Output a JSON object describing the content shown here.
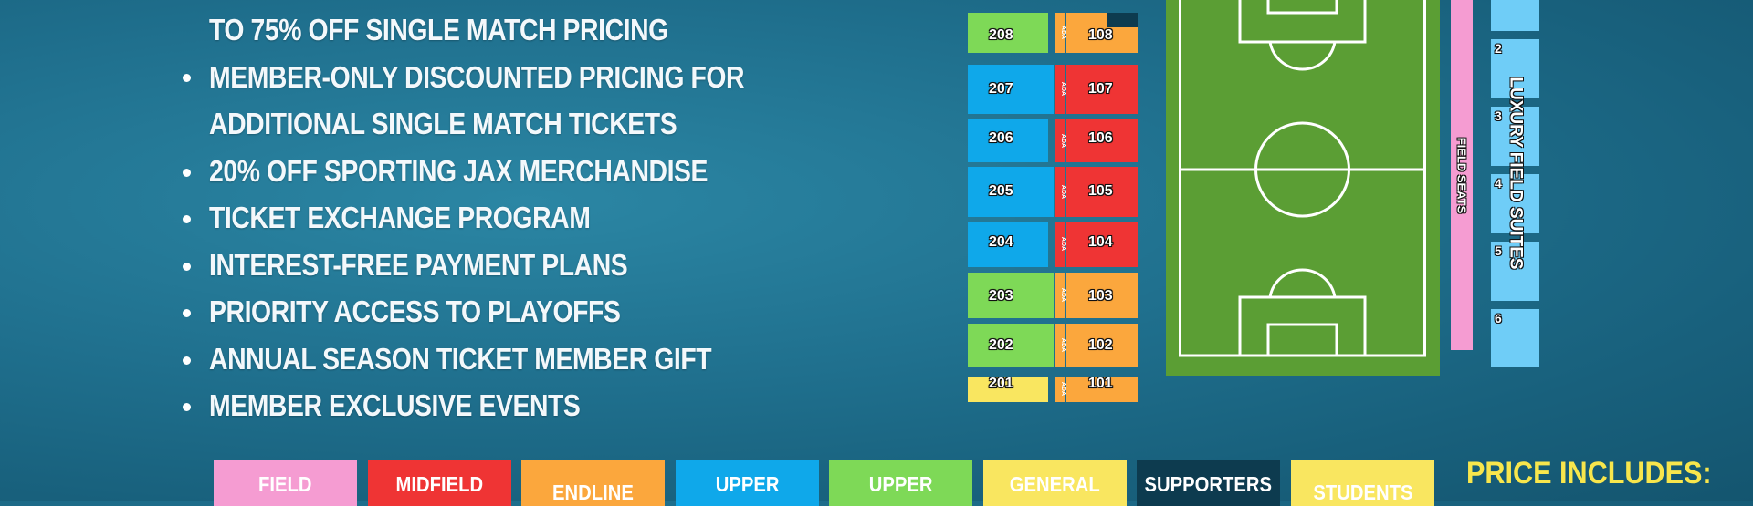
{
  "benefits": {
    "lines": [
      "TO 75% OFF SINGLE MATCH PRICING",
      "MEMBER-ONLY DISCOUNTED PRICING FOR",
      "ADDITIONAL SINGLE MATCH TICKETS",
      "20% OFF SPORTING JAX MERCHANDISE",
      "TICKET EXCHANGE PROGRAM",
      "INTEREST-FREE PAYMENT PLANS",
      "PRIORITY ACCESS TO PLAYOFFS",
      "ANNUAL SEASON TICKET MEMBER GIFT",
      "MEMBER EXCLUSIVE EVENTS"
    ]
  },
  "seating_map": {
    "upper_sections": [
      {
        "id": "208",
        "tier": "upper-green"
      },
      {
        "id": "207",
        "tier": "upper-blue"
      },
      {
        "id": "206",
        "tier": "upper-blue"
      },
      {
        "id": "205",
        "tier": "upper-blue"
      },
      {
        "id": "204",
        "tier": "upper-blue"
      },
      {
        "id": "203",
        "tier": "upper-green"
      },
      {
        "id": "202",
        "tier": "upper-green"
      },
      {
        "id": "201",
        "tier": "general"
      }
    ],
    "lower_sections": [
      {
        "id": "108",
        "tier": "endline"
      },
      {
        "id": "107",
        "tier": "midfield"
      },
      {
        "id": "106",
        "tier": "midfield"
      },
      {
        "id": "105",
        "tier": "midfield"
      },
      {
        "id": "104",
        "tier": "midfield"
      },
      {
        "id": "103",
        "tier": "endline"
      },
      {
        "id": "102",
        "tier": "endline"
      },
      {
        "id": "101",
        "tier": "endline"
      }
    ],
    "ada_label": "ADA",
    "field_seats_label": "FIELD SEATS",
    "suites_title": "LUXURY FIELD SUITES",
    "suite_numbers": [
      "2",
      "3",
      "4",
      "5",
      "6"
    ]
  },
  "legend": {
    "items": [
      {
        "label": "FIELD",
        "color": "#f59cd2"
      },
      {
        "label": "MIDFIELD",
        "color": "#ef3434"
      },
      {
        "label": "ENDLINE",
        "color": "#fba73d"
      },
      {
        "label": "UPPER",
        "color": "#0fa8ea"
      },
      {
        "label": "UPPER",
        "color": "#7ed957"
      },
      {
        "label": "GENERAL",
        "color": "#f9e660"
      },
      {
        "label": "SUPPORTERS",
        "color": "#0d3b4f"
      },
      {
        "label": "STUDENTS",
        "color": "#f9e660"
      }
    ]
  },
  "price_includes": {
    "title": "PRICE INCLUDES:"
  },
  "colors": {
    "midfield": "#ef3434",
    "endline": "#fba73d",
    "upper_blue": "#0fa8ea",
    "upper_green": "#7ed957",
    "general": "#f9e660",
    "field": "#f59cd2",
    "suite": "#6fcdf7",
    "pitch": "#5b9e34",
    "accent_yellow": "#f8e64c"
  }
}
